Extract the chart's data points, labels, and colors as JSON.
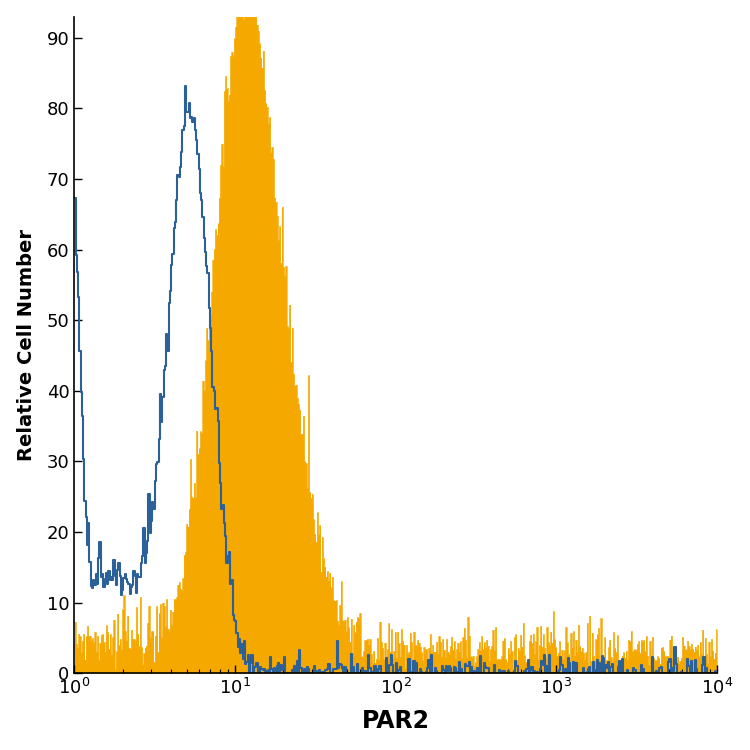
{
  "xlabel": "PAR2",
  "ylabel": "Relative Cell Number",
  "xlim": [
    1,
    10000
  ],
  "ylim": [
    0,
    93
  ],
  "yticks": [
    0,
    10,
    20,
    30,
    40,
    50,
    60,
    70,
    80,
    90
  ],
  "blue_color": "#2b6099",
  "orange_color": "#f5a800",
  "background_color": "#ffffff",
  "figsize": [
    7.5,
    7.5
  ],
  "dpi": 100
}
